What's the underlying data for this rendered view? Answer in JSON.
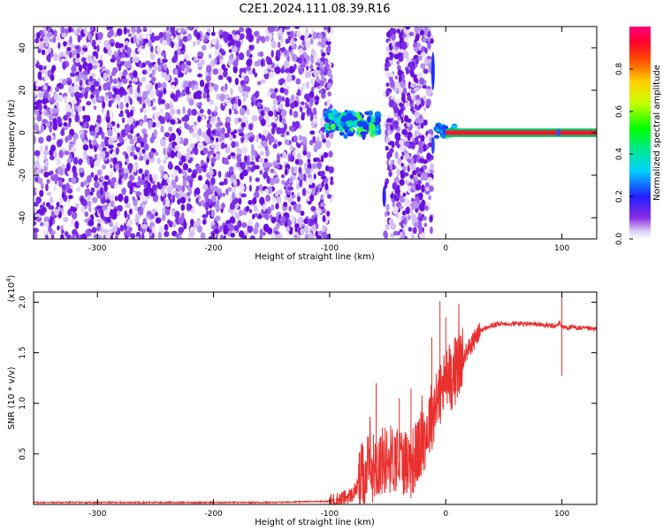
{
  "title": "C2E1.2024.111.08.39.R16",
  "chart_data": [
    {
      "type": "heatmap",
      "xlabel": "Height of straight line (km)",
      "ylabel": "Frequency (Hz)",
      "xlim": [
        -355,
        130
      ],
      "ylim": [
        -50,
        50
      ],
      "xticks": [
        -300,
        -200,
        -100,
        0,
        100
      ],
      "xtick_labels": [
        "-300",
        "-200",
        "-100",
        "0",
        "100"
      ],
      "yticks": [
        -40,
        -20,
        0,
        20,
        40
      ],
      "ytick_labels": [
        "-40",
        "-20",
        "0",
        "20",
        "40"
      ],
      "colorbar": {
        "label": "Normalized spectral amplitude",
        "range": [
          0,
          1
        ],
        "ticks": [
          0.0,
          0.2,
          0.4,
          0.6,
          0.8
        ],
        "tick_labels": [
          "0.0",
          "0.2",
          "0.4",
          "0.6",
          "0.8"
        ]
      },
      "regions": [
        {
          "x": [
            -355,
            -98
          ],
          "y": [
            -50,
            50
          ],
          "amplitude": "low, scattered"
        },
        {
          "x": [
            -103,
            -57
          ],
          "y": [
            -2,
            12
          ],
          "amplitude": "medium"
        },
        {
          "x": [
            -52,
            -12
          ],
          "y": [
            -50,
            50
          ],
          "amplitude": "low, scattered"
        },
        {
          "x": [
            -10,
            8
          ],
          "y": [
            -10,
            4
          ],
          "amplitude": "medium"
        },
        {
          "x": [
            0,
            130
          ],
          "y": [
            -1,
            1
          ],
          "amplitude": "high, constant"
        }
      ]
    },
    {
      "type": "line",
      "xlabel": "Height of straight line (km)",
      "ylabel": "SNR (10 * v/v)",
      "yscale_label": "(x10",
      "yscale_exp": "4",
      "yscale_close": ")",
      "xlim": [
        -355,
        130
      ],
      "ylim": [
        0,
        2.1
      ],
      "xticks": [
        -300,
        -200,
        -100,
        0,
        100
      ],
      "xtick_labels": [
        "-300",
        "-200",
        "-100",
        "0",
        "100"
      ],
      "yticks": [
        0.5,
        1.0,
        1.5,
        2.0
      ],
      "ytick_labels": [
        "0.5",
        "1.0",
        "1.5",
        "2.0"
      ],
      "series": [
        {
          "color": "#e8302e",
          "x": [
            -355,
            -250,
            -150,
            -110,
            -100,
            -90,
            -80,
            -70,
            -60,
            -50,
            -40,
            -30,
            -20,
            -10,
            -5,
            0,
            10,
            20,
            30,
            40,
            50,
            60,
            80,
            95,
            98,
            100,
            102,
            110,
            130
          ],
          "y": [
            0.02,
            0.02,
            0.02,
            0.03,
            0.03,
            0.05,
            0.1,
            0.3,
            0.4,
            0.45,
            0.45,
            0.4,
            0.6,
            0.95,
            1.1,
            1.2,
            1.35,
            1.55,
            1.72,
            1.77,
            1.79,
            1.79,
            1.78,
            1.76,
            1.8,
            1.76,
            1.75,
            1.75,
            1.73
          ]
        }
      ],
      "spikes": [
        {
          "x": -60,
          "y": 1.2
        },
        {
          "x": -40,
          "y": 1.05
        },
        {
          "x": -30,
          "y": 1.15
        },
        {
          "x": -12,
          "y": 1.65
        },
        {
          "x": -5,
          "y": 2.01
        },
        {
          "x": 0,
          "y": 1.85
        },
        {
          "x": 100,
          "y": 2.1
        },
        {
          "x": 100,
          "y": 1.27
        }
      ]
    }
  ]
}
